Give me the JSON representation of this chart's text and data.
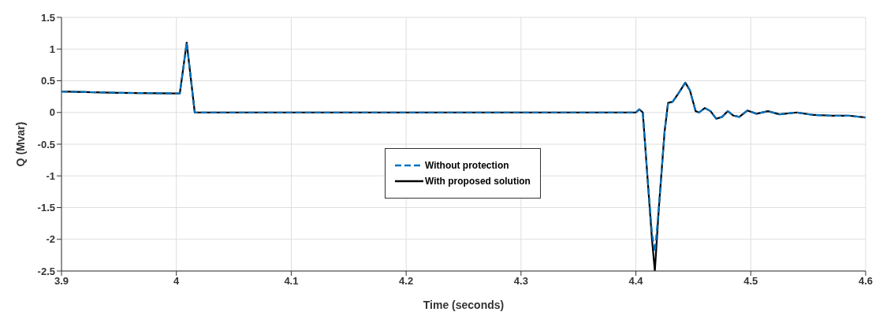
{
  "chart_data": {
    "type": "line",
    "xlabel": "Time (seconds)",
    "ylabel": "Q (Mvar)",
    "x": [
      3.9,
      3.95,
      4.0,
      4.003,
      4.009,
      4.016,
      4.1,
      4.4,
      4.403,
      4.406,
      4.41,
      4.414,
      4.4165,
      4.42,
      4.425,
      4.428,
      4.432,
      4.437,
      4.443,
      4.447,
      4.452,
      4.455,
      4.46,
      4.465,
      4.47,
      4.475,
      4.48,
      4.485,
      4.49,
      4.497,
      4.505,
      4.515,
      4.525,
      4.54,
      4.555,
      4.57,
      4.585,
      4.6
    ],
    "series": [
      {
        "name": "Without protection",
        "color": "#0072bd",
        "line_style": "dashed",
        "values": [
          0.33,
          0.31,
          0.3,
          0.3,
          1.1,
          0,
          0,
          0,
          0.05,
          0,
          -1.0,
          -1.9,
          -2.2,
          -1.5,
          -0.3,
          0.15,
          0.17,
          0.3,
          0.47,
          0.35,
          0.02,
          0,
          0.07,
          0.02,
          -0.1,
          -0.07,
          0.02,
          -0.05,
          -0.07,
          0.03,
          -0.02,
          0.02,
          -0.03,
          0,
          -0.04,
          -0.05,
          -0.05,
          -0.08
        ]
      },
      {
        "name": "With proposed solution",
        "color": "#000000",
        "line_style": "solid",
        "values": [
          0.33,
          0.31,
          0.3,
          0.3,
          1.1,
          0,
          0,
          0,
          0.05,
          0,
          -1.0,
          -2.0,
          -2.5,
          -1.5,
          -0.3,
          0.15,
          0.17,
          0.3,
          0.47,
          0.35,
          0.02,
          0,
          0.07,
          0.02,
          -0.1,
          -0.07,
          0.02,
          -0.05,
          -0.07,
          0.03,
          -0.02,
          0.02,
          -0.03,
          0,
          -0.04,
          -0.05,
          -0.05,
          -0.08
        ]
      }
    ],
    "xlim": [
      3.9,
      4.6
    ],
    "xticks": [
      3.9,
      4,
      4.1,
      4.2,
      4.3,
      4.4,
      4.5,
      4.6
    ],
    "ylim": [
      -2.5,
      1.5
    ],
    "yticks": [
      -2.5,
      -2,
      -1.5,
      -1,
      -0.5,
      0,
      0.5,
      1,
      1.5
    ],
    "grid": true,
    "legend": "center",
    "marker": "none"
  }
}
